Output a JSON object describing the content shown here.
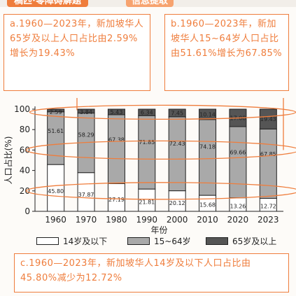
{
  "header": {
    "tab_text": "稿匹·零障碍解题",
    "tab2_text": "信息提取"
  },
  "notes": {
    "a": "a.1960—2023年，新加坡华人65岁及以上人口占比由2.59%增长为19.43%",
    "b": "b.1960—2023年，新加坡华人15~64岁人口占比由51.61%增长为67.85%",
    "c": "c.1960—2023年，新加坡华人14岁及以下人口占比由45.80%减少为12.72%"
  },
  "colors": {
    "accent": "#ef7d3c",
    "young": "#ffffff",
    "working": "#a9a9a9",
    "elderly": "#555555"
  },
  "chart_data": {
    "type": "bar",
    "stacked": true,
    "categories": [
      "1960",
      "1970",
      "1980",
      "1990",
      "2000",
      "2010",
      "2020",
      "2023"
    ],
    "series": [
      {
        "name": "14岁及以下",
        "values": [
          45.8,
          37.87,
          27.19,
          21.81,
          20.12,
          15.68,
          13.26,
          12.72
        ]
      },
      {
        "name": "15~64岁",
        "values": [
          51.61,
          58.29,
          67.38,
          71.85,
          72.43,
          74.18,
          69.66,
          67.85
        ]
      },
      {
        "name": "65岁及以上",
        "values": [
          2.59,
          3.84,
          5.43,
          6.34,
          7.45,
          10.14,
          17.08,
          19.43
        ]
      }
    ],
    "xlabel": "年份",
    "ylabel": "人口占比(%)",
    "ylim": [
      0,
      100
    ],
    "yticks": [
      0,
      20,
      40,
      60,
      80,
      100
    ],
    "legend_position": "bottom"
  }
}
